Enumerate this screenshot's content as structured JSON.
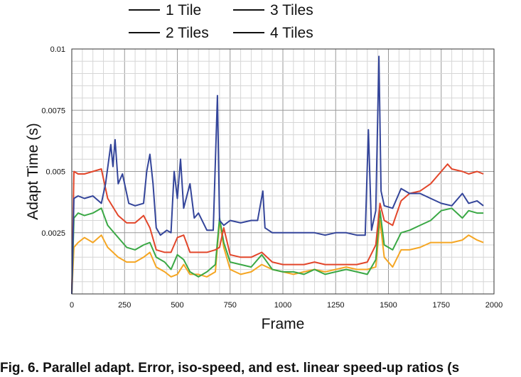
{
  "caption": "Fig. 6.  Parallel adapt. Error, iso-speed, and est. linear speed-up ratios (s",
  "chart_data": {
    "type": "line",
    "title": "",
    "xlabel": "Frame",
    "ylabel": "Adapt Time (s)",
    "xlim": [
      0,
      2000
    ],
    "ylim": [
      0,
      0.01
    ],
    "xticks": [
      0,
      250,
      500,
      750,
      1000,
      1250,
      1500,
      1750,
      2000
    ],
    "xtick_labels": [
      "0",
      "250",
      "500",
      "750",
      "1000",
      "1250",
      "1500",
      "1750",
      "2000"
    ],
    "yticks": [
      0.0025,
      0.005,
      0.0075,
      0.01
    ],
    "ytick_labels": [
      "0.0025",
      "0.005",
      "0.0075",
      "0.01"
    ],
    "grid": true,
    "legend_position": "top",
    "series": [
      {
        "name": "1 Tile",
        "color": "#f5a623",
        "points": [
          [
            0,
            0
          ],
          [
            10,
            0.0019
          ],
          [
            30,
            0.0021
          ],
          [
            60,
            0.0023
          ],
          [
            100,
            0.0021
          ],
          [
            140,
            0.0024
          ],
          [
            170,
            0.0019
          ],
          [
            220,
            0.0015
          ],
          [
            260,
            0.0013
          ],
          [
            300,
            0.0013
          ],
          [
            340,
            0.0015
          ],
          [
            370,
            0.0017
          ],
          [
            400,
            0.0011
          ],
          [
            440,
            0.0009
          ],
          [
            470,
            0.0007
          ],
          [
            500,
            0.0008
          ],
          [
            530,
            0.0012
          ],
          [
            560,
            0.0008
          ],
          [
            600,
            0.0008
          ],
          [
            640,
            0.0007
          ],
          [
            680,
            0.0009
          ],
          [
            700,
            0.003
          ],
          [
            720,
            0.0019
          ],
          [
            750,
            0.001
          ],
          [
            800,
            0.0008
          ],
          [
            850,
            0.0009
          ],
          [
            900,
            0.0012
          ],
          [
            950,
            0.001
          ],
          [
            1000,
            0.0009
          ],
          [
            1050,
            0.0008
          ],
          [
            1100,
            0.0009
          ],
          [
            1150,
            0.001
          ],
          [
            1200,
            0.0009
          ],
          [
            1250,
            0.001
          ],
          [
            1300,
            0.0011
          ],
          [
            1350,
            0.001
          ],
          [
            1400,
            0.001
          ],
          [
            1440,
            0.0011
          ],
          [
            1460,
            0.003
          ],
          [
            1480,
            0.0015
          ],
          [
            1520,
            0.0011
          ],
          [
            1560,
            0.0018
          ],
          [
            1600,
            0.0018
          ],
          [
            1650,
            0.0019
          ],
          [
            1700,
            0.0021
          ],
          [
            1750,
            0.0021
          ],
          [
            1800,
            0.0021
          ],
          [
            1850,
            0.0022
          ],
          [
            1880,
            0.0024
          ],
          [
            1920,
            0.0022
          ],
          [
            1950,
            0.0021
          ]
        ]
      },
      {
        "name": "2 Tiles",
        "color": "#3aa845",
        "points": [
          [
            0,
            0
          ],
          [
            10,
            0.0031
          ],
          [
            30,
            0.0033
          ],
          [
            60,
            0.0032
          ],
          [
            100,
            0.0033
          ],
          [
            140,
            0.0035
          ],
          [
            170,
            0.0028
          ],
          [
            220,
            0.0023
          ],
          [
            260,
            0.0019
          ],
          [
            300,
            0.0018
          ],
          [
            340,
            0.002
          ],
          [
            370,
            0.0021
          ],
          [
            400,
            0.0015
          ],
          [
            440,
            0.0013
          ],
          [
            470,
            0.001
          ],
          [
            500,
            0.0016
          ],
          [
            530,
            0.0014
          ],
          [
            560,
            0.0009
          ],
          [
            600,
            0.0007
          ],
          [
            640,
            0.0009
          ],
          [
            680,
            0.0012
          ],
          [
            700,
            0.0031
          ],
          [
            720,
            0.0021
          ],
          [
            750,
            0.0013
          ],
          [
            800,
            0.0012
          ],
          [
            850,
            0.0011
          ],
          [
            900,
            0.0016
          ],
          [
            950,
            0.001
          ],
          [
            1000,
            0.0009
          ],
          [
            1050,
            0.0009
          ],
          [
            1100,
            0.0008
          ],
          [
            1150,
            0.001
          ],
          [
            1200,
            0.0008
          ],
          [
            1250,
            0.0009
          ],
          [
            1300,
            0.001
          ],
          [
            1350,
            0.0009
          ],
          [
            1400,
            0.0008
          ],
          [
            1440,
            0.0014
          ],
          [
            1460,
            0.0034
          ],
          [
            1480,
            0.002
          ],
          [
            1520,
            0.0018
          ],
          [
            1560,
            0.0025
          ],
          [
            1600,
            0.0026
          ],
          [
            1650,
            0.0028
          ],
          [
            1700,
            0.003
          ],
          [
            1750,
            0.0034
          ],
          [
            1800,
            0.0035
          ],
          [
            1850,
            0.0031
          ],
          [
            1880,
            0.0034
          ],
          [
            1920,
            0.0033
          ],
          [
            1950,
            0.0033
          ]
        ]
      },
      {
        "name": "3 Tiles",
        "color": "#e2462a",
        "points": [
          [
            0,
            0
          ],
          [
            10,
            0.005
          ],
          [
            30,
            0.0049
          ],
          [
            60,
            0.0049
          ],
          [
            100,
            0.005
          ],
          [
            140,
            0.0051
          ],
          [
            170,
            0.0039
          ],
          [
            220,
            0.0032
          ],
          [
            260,
            0.0029
          ],
          [
            300,
            0.0029
          ],
          [
            340,
            0.0032
          ],
          [
            370,
            0.0027
          ],
          [
            400,
            0.0018
          ],
          [
            440,
            0.0017
          ],
          [
            470,
            0.0017
          ],
          [
            500,
            0.0023
          ],
          [
            530,
            0.0024
          ],
          [
            560,
            0.0017
          ],
          [
            600,
            0.0017
          ],
          [
            640,
            0.0017
          ],
          [
            680,
            0.0018
          ],
          [
            700,
            0.0019
          ],
          [
            720,
            0.0027
          ],
          [
            750,
            0.0016
          ],
          [
            800,
            0.0015
          ],
          [
            850,
            0.0015
          ],
          [
            900,
            0.0017
          ],
          [
            950,
            0.0013
          ],
          [
            1000,
            0.0012
          ],
          [
            1050,
            0.0012
          ],
          [
            1100,
            0.0012
          ],
          [
            1150,
            0.0013
          ],
          [
            1200,
            0.0012
          ],
          [
            1250,
            0.0012
          ],
          [
            1300,
            0.0012
          ],
          [
            1350,
            0.0012
          ],
          [
            1400,
            0.0013
          ],
          [
            1440,
            0.002
          ],
          [
            1460,
            0.0037
          ],
          [
            1480,
            0.003
          ],
          [
            1520,
            0.0028
          ],
          [
            1560,
            0.0038
          ],
          [
            1600,
            0.0041
          ],
          [
            1650,
            0.0042
          ],
          [
            1700,
            0.0045
          ],
          [
            1750,
            0.005
          ],
          [
            1780,
            0.0053
          ],
          [
            1800,
            0.0051
          ],
          [
            1850,
            0.005
          ],
          [
            1880,
            0.0049
          ],
          [
            1920,
            0.005
          ],
          [
            1950,
            0.0049
          ]
        ]
      },
      {
        "name": "4 Tiles",
        "color": "#34459a",
        "points": [
          [
            0,
            0
          ],
          [
            10,
            0.0039
          ],
          [
            30,
            0.004
          ],
          [
            60,
            0.0039
          ],
          [
            100,
            0.004
          ],
          [
            140,
            0.0037
          ],
          [
            160,
            0.0045
          ],
          [
            185,
            0.0061
          ],
          [
            195,
            0.0052
          ],
          [
            205,
            0.0063
          ],
          [
            220,
            0.0045
          ],
          [
            240,
            0.0049
          ],
          [
            270,
            0.0037
          ],
          [
            300,
            0.0036
          ],
          [
            340,
            0.0037
          ],
          [
            355,
            0.005
          ],
          [
            370,
            0.0057
          ],
          [
            385,
            0.0045
          ],
          [
            400,
            0.0027
          ],
          [
            420,
            0.0024
          ],
          [
            450,
            0.0026
          ],
          [
            470,
            0.0025
          ],
          [
            485,
            0.005
          ],
          [
            500,
            0.0039
          ],
          [
            515,
            0.0055
          ],
          [
            530,
            0.0035
          ],
          [
            560,
            0.0045
          ],
          [
            580,
            0.0031
          ],
          [
            600,
            0.0033
          ],
          [
            640,
            0.0026
          ],
          [
            670,
            0.0026
          ],
          [
            690,
            0.0081
          ],
          [
            700,
            0.003
          ],
          [
            720,
            0.0028
          ],
          [
            750,
            0.003
          ],
          [
            800,
            0.0029
          ],
          [
            850,
            0.003
          ],
          [
            880,
            0.003
          ],
          [
            905,
            0.0042
          ],
          [
            915,
            0.0027
          ],
          [
            950,
            0.0025
          ],
          [
            1000,
            0.0025
          ],
          [
            1050,
            0.0025
          ],
          [
            1100,
            0.0025
          ],
          [
            1150,
            0.0025
          ],
          [
            1200,
            0.0024
          ],
          [
            1250,
            0.0025
          ],
          [
            1300,
            0.0025
          ],
          [
            1350,
            0.0024
          ],
          [
            1390,
            0.0024
          ],
          [
            1405,
            0.0067
          ],
          [
            1420,
            0.0026
          ],
          [
            1440,
            0.0034
          ],
          [
            1455,
            0.0097
          ],
          [
            1465,
            0.0042
          ],
          [
            1480,
            0.0036
          ],
          [
            1520,
            0.0035
          ],
          [
            1560,
            0.0043
          ],
          [
            1600,
            0.0041
          ],
          [
            1650,
            0.0041
          ],
          [
            1700,
            0.0039
          ],
          [
            1750,
            0.0037
          ],
          [
            1800,
            0.0036
          ],
          [
            1850,
            0.0041
          ],
          [
            1880,
            0.0037
          ],
          [
            1920,
            0.0038
          ],
          [
            1950,
            0.0036
          ]
        ]
      }
    ]
  }
}
